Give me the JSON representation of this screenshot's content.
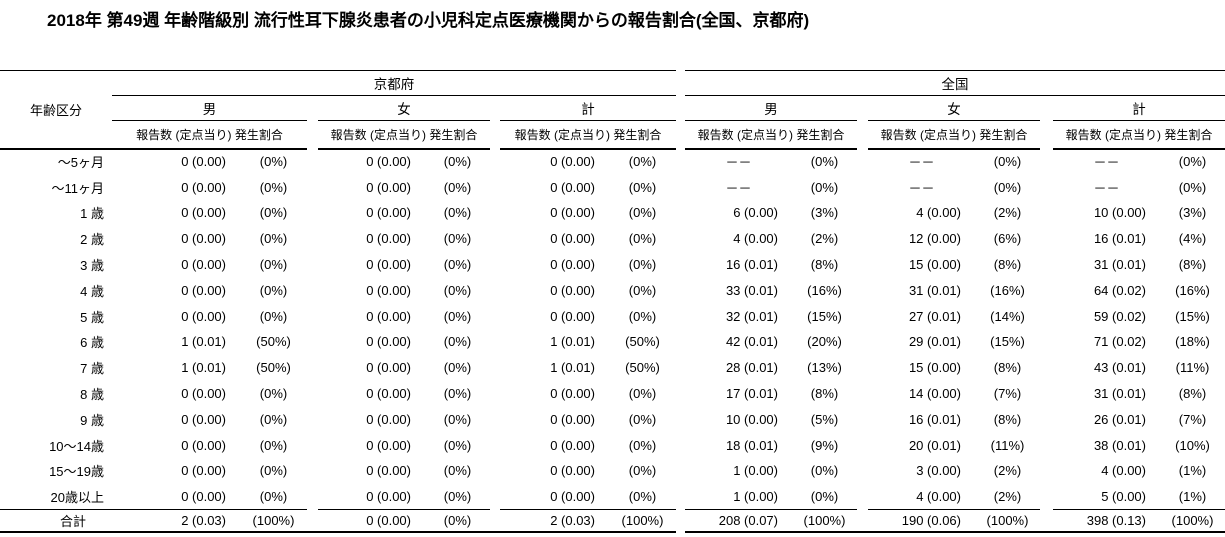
{
  "title": "2018年 第49週 年齢階級別 流行性耳下腺炎患者の小児科定点医療機関からの報告割合(全国、京都府)",
  "table": {
    "age_header": "年齢区分",
    "subheader": "報告数 (定点当り)  発生割合",
    "regions": [
      {
        "label": "京都府",
        "genders": [
          "男",
          "女",
          "計"
        ]
      },
      {
        "label": "全国",
        "genders": [
          "男",
          "女",
          "計"
        ]
      }
    ],
    "rows": [
      {
        "age": "～5ヶ月",
        "cells": [
          "0 (0.00)",
          "(0%)",
          "0 (0.00)",
          "(0%)",
          "0 (0.00)",
          "(0%)",
          "－－",
          "(0%)",
          "－－",
          "(0%)",
          "－－",
          "(0%)"
        ]
      },
      {
        "age": "～11ヶ月",
        "cells": [
          "0 (0.00)",
          "(0%)",
          "0 (0.00)",
          "(0%)",
          "0 (0.00)",
          "(0%)",
          "－－",
          "(0%)",
          "－－",
          "(0%)",
          "－－",
          "(0%)"
        ]
      },
      {
        "age": "1 歳",
        "cells": [
          "0 (0.00)",
          "(0%)",
          "0 (0.00)",
          "(0%)",
          "0 (0.00)",
          "(0%)",
          "6 (0.00)",
          "(3%)",
          "4 (0.00)",
          "(2%)",
          "10 (0.00)",
          "(3%)"
        ]
      },
      {
        "age": "2 歳",
        "cells": [
          "0 (0.00)",
          "(0%)",
          "0 (0.00)",
          "(0%)",
          "0 (0.00)",
          "(0%)",
          "4 (0.00)",
          "(2%)",
          "12 (0.00)",
          "(6%)",
          "16 (0.01)",
          "(4%)"
        ]
      },
      {
        "age": "3 歳",
        "cells": [
          "0 (0.00)",
          "(0%)",
          "0 (0.00)",
          "(0%)",
          "0 (0.00)",
          "(0%)",
          "16 (0.01)",
          "(8%)",
          "15 (0.00)",
          "(8%)",
          "31 (0.01)",
          "(8%)"
        ]
      },
      {
        "age": "4 歳",
        "cells": [
          "0 (0.00)",
          "(0%)",
          "0 (0.00)",
          "(0%)",
          "0 (0.00)",
          "(0%)",
          "33 (0.01)",
          "(16%)",
          "31 (0.01)",
          "(16%)",
          "64 (0.02)",
          "(16%)"
        ]
      },
      {
        "age": "5 歳",
        "cells": [
          "0 (0.00)",
          "(0%)",
          "0 (0.00)",
          "(0%)",
          "0 (0.00)",
          "(0%)",
          "32 (0.01)",
          "(15%)",
          "27 (0.01)",
          "(14%)",
          "59 (0.02)",
          "(15%)"
        ]
      },
      {
        "age": "6 歳",
        "cells": [
          "1 (0.01)",
          "(50%)",
          "0 (0.00)",
          "(0%)",
          "1 (0.01)",
          "(50%)",
          "42 (0.01)",
          "(20%)",
          "29 (0.01)",
          "(15%)",
          "71 (0.02)",
          "(18%)"
        ]
      },
      {
        "age": "7 歳",
        "cells": [
          "1 (0.01)",
          "(50%)",
          "0 (0.00)",
          "(0%)",
          "1 (0.01)",
          "(50%)",
          "28 (0.01)",
          "(13%)",
          "15 (0.00)",
          "(8%)",
          "43 (0.01)",
          "(11%)"
        ]
      },
      {
        "age": "8 歳",
        "cells": [
          "0 (0.00)",
          "(0%)",
          "0 (0.00)",
          "(0%)",
          "0 (0.00)",
          "(0%)",
          "17 (0.01)",
          "(8%)",
          "14 (0.00)",
          "(7%)",
          "31 (0.01)",
          "(8%)"
        ]
      },
      {
        "age": "9 歳",
        "cells": [
          "0 (0.00)",
          "(0%)",
          "0 (0.00)",
          "(0%)",
          "0 (0.00)",
          "(0%)",
          "10 (0.00)",
          "(5%)",
          "16 (0.01)",
          "(8%)",
          "26 (0.01)",
          "(7%)"
        ]
      },
      {
        "age": "10～14歳",
        "cells": [
          "0 (0.00)",
          "(0%)",
          "0 (0.00)",
          "(0%)",
          "0 (0.00)",
          "(0%)",
          "18 (0.01)",
          "(9%)",
          "20 (0.01)",
          "(11%)",
          "38 (0.01)",
          "(10%)"
        ]
      },
      {
        "age": "15～19歳",
        "cells": [
          "0 (0.00)",
          "(0%)",
          "0 (0.00)",
          "(0%)",
          "0 (0.00)",
          "(0%)",
          "1 (0.00)",
          "(0%)",
          "3 (0.00)",
          "(2%)",
          "4 (0.00)",
          "(1%)"
        ]
      },
      {
        "age": "20歳以上",
        "cells": [
          "0 (0.00)",
          "(0%)",
          "0 (0.00)",
          "(0%)",
          "0 (0.00)",
          "(0%)",
          "1 (0.00)",
          "(0%)",
          "4 (0.00)",
          "(2%)",
          "5 (0.00)",
          "(1%)"
        ]
      }
    ],
    "total_row": {
      "age": "合計",
      "cells": [
        "2 (0.03)",
        "(100%)",
        "0 (0.00)",
        "(0%)",
        "2 (0.03)",
        "(100%)",
        "208 (0.07)",
        "(100%)",
        "190 (0.06)",
        "(100%)",
        "398 (0.13)",
        "(100%)"
      ]
    }
  }
}
